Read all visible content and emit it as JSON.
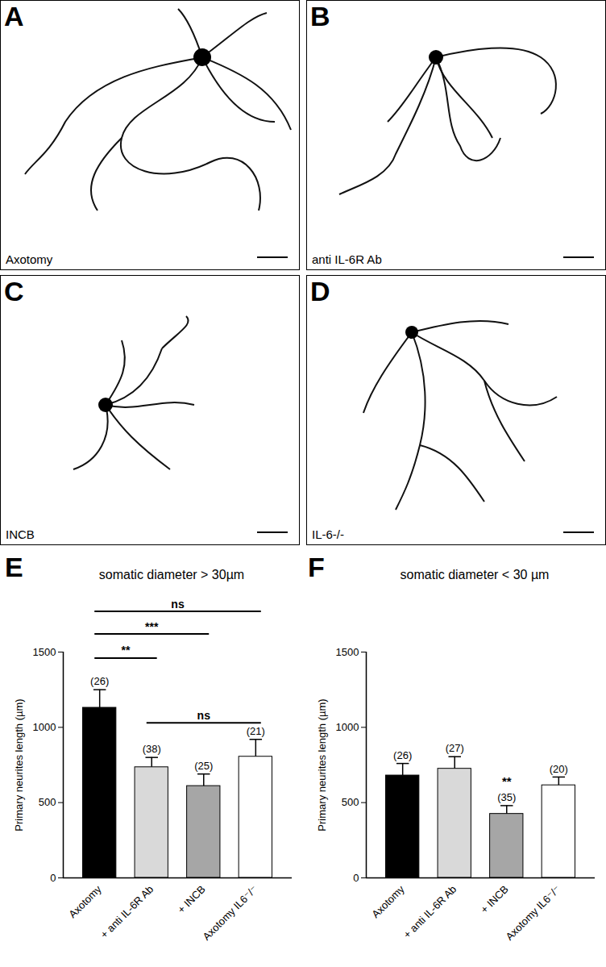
{
  "panels": [
    {
      "letter": "A",
      "label": "Axotomy"
    },
    {
      "letter": "B",
      "label": "anti IL-6R Ab"
    },
    {
      "letter": "C",
      "label": "INCB"
    },
    {
      "letter": "D",
      "label": "IL-6-/-"
    }
  ],
  "chart_data": [
    {
      "type": "bar",
      "panel": "E",
      "title": "somatic diameter > 30µm",
      "y_label": "Primary neurites length (µm)",
      "categories": [
        "Axotomy",
        "+ anti IL-6R Ab",
        "+ INCB",
        "Axotomy IL6⁻/⁻"
      ],
      "values": [
        1130,
        735,
        610,
        805
      ],
      "errors": [
        120,
        65,
        80,
        115
      ],
      "n_labels": [
        "(26)",
        "(38)",
        "(25)",
        "(21)"
      ],
      "colors": [
        "#000000",
        "#d9d9d9",
        "#a6a6a6",
        "#ffffff"
      ],
      "ylim": [
        0,
        1500
      ],
      "yticks": [
        0,
        500,
        1000,
        1500
      ],
      "comparisons": [
        {
          "from": "Axotomy",
          "to": "Axotomy IL6⁻/⁻",
          "y": 1770,
          "label": "ns"
        },
        {
          "from": "Axotomy",
          "to": "+ INCB",
          "y": 1620,
          "label": "***"
        },
        {
          "from": "Axotomy",
          "to": "+ anti IL-6R Ab",
          "y": 1460,
          "label": "**"
        },
        {
          "from": "+ anti IL-6R Ab",
          "to": "Axotomy IL6⁻/⁻",
          "y": 1030,
          "label": "ns"
        }
      ]
    },
    {
      "type": "bar",
      "panel": "F",
      "title": "somatic diameter < 30 µm",
      "y_label": "Primary neurites length (µm)",
      "categories": [
        "Axotomy",
        "+ anti IL-6R Ab",
        "+ INCB",
        "Axotomy IL6⁻/⁻"
      ],
      "values": [
        680,
        725,
        425,
        615
      ],
      "errors": [
        80,
        80,
        55,
        55
      ],
      "n_labels": [
        "(26)",
        "(27)",
        "(35)",
        "(20)"
      ],
      "colors": [
        "#000000",
        "#d9d9d9",
        "#a6a6a6",
        "#ffffff"
      ],
      "ylim": [
        0,
        1500
      ],
      "yticks": [
        0,
        500,
        1000,
        1500
      ],
      "annotations": [
        {
          "category": "+ INCB",
          "y": 640,
          "label": "**"
        }
      ]
    }
  ]
}
